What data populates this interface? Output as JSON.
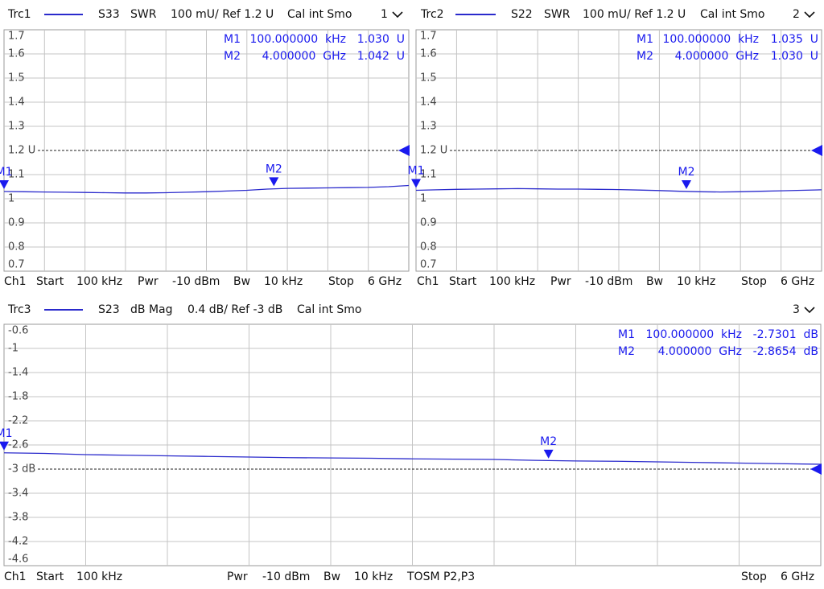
{
  "chart_data": [
    {
      "type": "line",
      "header": {
        "parameter": "S33",
        "format": "SWR",
        "scale": "100 mU/ Ref 1.2 U",
        "cal": "Cal int Smo",
        "channel": "1"
      },
      "footer": [
        "Ch1",
        "Start",
        "100 kHz",
        "Pwr",
        "-10 dBm",
        "Bw",
        "10 kHz",
        "Stop",
        "6 GHz"
      ],
      "x": [
        0.0001,
        0.3,
        0.6,
        0.9,
        1.2,
        1.5,
        1.8,
        2.1,
        2.4,
        2.7,
        3.0,
        3.3,
        3.6,
        3.9,
        4.2,
        4.5,
        4.8,
        5.1,
        5.4,
        5.7,
        6.0
      ],
      "xlim": [
        0.0001,
        6
      ],
      "x_divisions": 10,
      "ylim": [
        0.7,
        1.7
      ],
      "yticks": [
        0.7,
        0.8,
        0.9,
        1,
        1.1,
        {
          "value": 1.2,
          "label": "1.2 U"
        },
        1.3,
        1.4,
        1.5,
        1.6,
        1.7
      ],
      "grid": true,
      "series": [
        {
          "name": "Trc1",
          "color": "#2a2acc",
          "values": [
            1.03,
            1.029,
            1.028,
            1.027,
            1.026,
            1.025,
            1.024,
            1.024,
            1.025,
            1.027,
            1.029,
            1.032,
            1.035,
            1.04,
            1.043,
            1.044,
            1.045,
            1.046,
            1.047,
            1.05,
            1.055
          ]
        }
      ],
      "markers": [
        {
          "name": "M1",
          "x": 0.0001,
          "x_label": "100.000000  kHz",
          "value": 1.03,
          "value_label": "1.030  U"
        },
        {
          "name": "M2",
          "x": 4,
          "x_label": "4.000000  GHz",
          "value": 1.042,
          "value_label": "1.042  U"
        }
      ]
    },
    {
      "type": "line",
      "header": {
        "parameter": "S22",
        "format": "SWR",
        "scale": "100 mU/ Ref 1.2 U",
        "cal": "Cal int Smo",
        "channel": "2"
      },
      "footer": [
        "Ch1",
        "Start",
        "100 kHz",
        "Pwr",
        "-10 dBm",
        "Bw",
        "10 kHz",
        "Stop",
        "6 GHz"
      ],
      "x": [
        0.0001,
        0.3,
        0.6,
        0.9,
        1.2,
        1.5,
        1.8,
        2.1,
        2.4,
        2.7,
        3.0,
        3.3,
        3.6,
        3.9,
        4.2,
        4.5,
        4.8,
        5.1,
        5.4,
        5.7,
        6.0
      ],
      "xlim": [
        0.0001,
        6
      ],
      "x_divisions": 10,
      "ylim": [
        0.7,
        1.7
      ],
      "yticks": [
        0.7,
        0.8,
        0.9,
        1,
        1.1,
        {
          "value": 1.2,
          "label": "1.2 U"
        },
        1.3,
        1.4,
        1.5,
        1.6,
        1.7
      ],
      "grid": true,
      "series": [
        {
          "name": "Trc2",
          "color": "#2a2acc",
          "values": [
            1.035,
            1.037,
            1.039,
            1.04,
            1.041,
            1.042,
            1.041,
            1.04,
            1.04,
            1.039,
            1.038,
            1.036,
            1.034,
            1.031,
            1.029,
            1.028,
            1.029,
            1.031,
            1.033,
            1.035,
            1.037
          ]
        }
      ],
      "markers": [
        {
          "name": "M1",
          "x": 0.0001,
          "x_label": "100.000000  kHz",
          "value": 1.035,
          "value_label": "1.035  U"
        },
        {
          "name": "M2",
          "x": 4,
          "x_label": "4.000000  GHz",
          "value": 1.03,
          "value_label": "1.030  U"
        }
      ]
    },
    {
      "type": "line",
      "header": {
        "parameter": "S23",
        "format": "dB Mag",
        "scale": "0.4 dB/ Ref -3 dB",
        "cal": "Cal int Smo",
        "channel": "3"
      },
      "footer": [
        "Ch1",
        "Start",
        "100 kHz",
        "Pwr",
        "-10 dBm",
        "Bw",
        "10 kHz",
        "TOSM P2,P3",
        "Stop",
        "6 GHz"
      ],
      "x": [
        0.0001,
        0.3,
        0.6,
        0.9,
        1.2,
        1.5,
        1.8,
        2.1,
        2.4,
        2.7,
        3.0,
        3.3,
        3.6,
        3.9,
        4.2,
        4.5,
        4.8,
        5.1,
        5.4,
        5.7,
        6.0
      ],
      "xlim": [
        0.0001,
        6
      ],
      "x_divisions": 10,
      "ylim": [
        -4.6,
        -0.6
      ],
      "yticks": [
        -4.6,
        -4.2,
        -3.8,
        -3.4,
        {
          "value": -3,
          "label": "-3 dB"
        },
        -2.6,
        -2.2,
        -1.8,
        -1.4,
        -1,
        -0.6
      ],
      "grid": true,
      "series": [
        {
          "name": "Trc3",
          "color": "#2a2acc",
          "values": [
            -2.7301,
            -2.74,
            -2.76,
            -2.77,
            -2.78,
            -2.79,
            -2.8,
            -2.81,
            -2.815,
            -2.82,
            -2.83,
            -2.835,
            -2.84,
            -2.855,
            -2.865,
            -2.87,
            -2.88,
            -2.89,
            -2.9,
            -2.91,
            -2.92
          ]
        }
      ],
      "markers": [
        {
          "name": "M1",
          "x": 0.0001,
          "x_label": "100.000000  kHz",
          "value": -2.7301,
          "value_label": "-2.7301  dB"
        },
        {
          "name": "M2",
          "x": 4,
          "x_label": "4.000000  GHz",
          "value": -2.8654,
          "value_label": "-2.8654  dB"
        }
      ]
    }
  ]
}
